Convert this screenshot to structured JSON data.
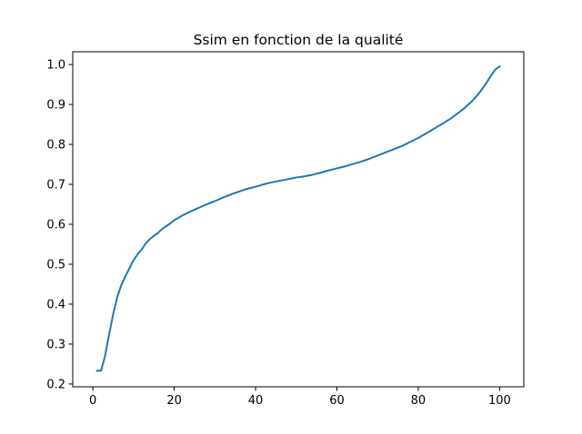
{
  "chart_data": {
    "type": "line",
    "title": "Ssim en fonction de la qualité",
    "xlabel": "",
    "ylabel": "",
    "xlim": [
      -4.95,
      105.95
    ],
    "ylim": [
      0.193,
      1.032
    ],
    "grid": false,
    "legend": "none",
    "line_color": "#1f77b4",
    "x_ticks": [
      0,
      20,
      40,
      60,
      80,
      100
    ],
    "x_tick_labels": [
      "0",
      "20",
      "40",
      "60",
      "80",
      "100"
    ],
    "y_ticks": [
      0.2,
      0.3,
      0.4,
      0.5,
      0.6,
      0.7,
      0.8,
      0.9,
      1.0
    ],
    "y_tick_labels": [
      "0.2",
      "0.3",
      "0.4",
      "0.5",
      "0.6",
      "0.7",
      "0.8",
      "0.9",
      "1.0"
    ],
    "series": [
      {
        "x": [
          1,
          2,
          3,
          4,
          5,
          6,
          7,
          8,
          9,
          10,
          11,
          12,
          13,
          14,
          15,
          16,
          17,
          18,
          19,
          20,
          22,
          24,
          26,
          28,
          30,
          32,
          34,
          36,
          38,
          40,
          42,
          44,
          46,
          48,
          50,
          52,
          54,
          56,
          58,
          60,
          62,
          64,
          66,
          68,
          70,
          72,
          74,
          76,
          78,
          80,
          82,
          84,
          86,
          88,
          90,
          91,
          92,
          93,
          94,
          95,
          96,
          97,
          98,
          99,
          100
        ],
        "y": [
          0.233,
          0.233,
          0.27,
          0.325,
          0.375,
          0.418,
          0.448,
          0.47,
          0.49,
          0.51,
          0.525,
          0.537,
          0.552,
          0.563,
          0.571,
          0.578,
          0.588,
          0.595,
          0.602,
          0.61,
          0.622,
          0.632,
          0.641,
          0.65,
          0.658,
          0.667,
          0.675,
          0.682,
          0.689,
          0.694,
          0.7,
          0.705,
          0.709,
          0.713,
          0.717,
          0.72,
          0.724,
          0.729,
          0.735,
          0.74,
          0.745,
          0.751,
          0.757,
          0.764,
          0.772,
          0.78,
          0.788,
          0.796,
          0.806,
          0.816,
          0.828,
          0.84,
          0.852,
          0.865,
          0.88,
          0.888,
          0.897,
          0.906,
          0.917,
          0.929,
          0.943,
          0.958,
          0.974,
          0.988,
          0.995
        ]
      }
    ]
  }
}
